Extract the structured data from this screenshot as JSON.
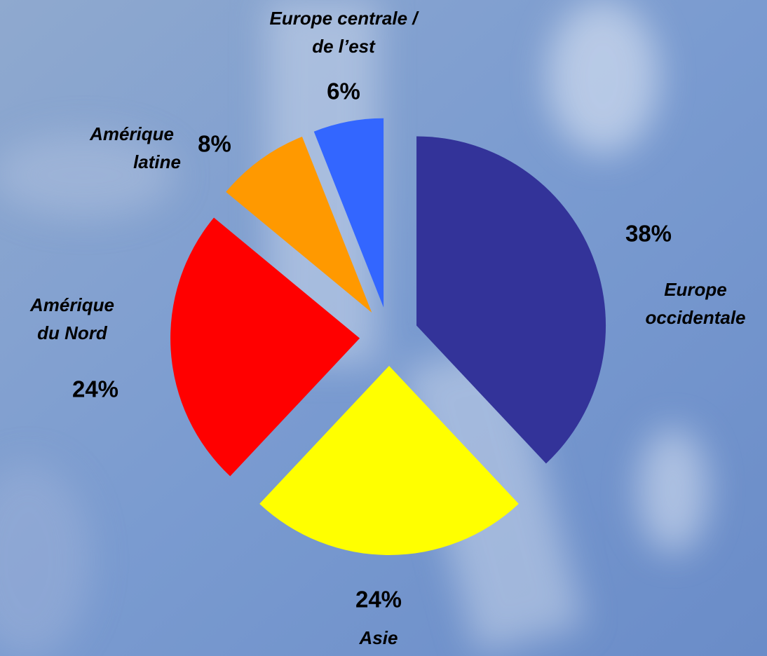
{
  "chart_data": {
    "type": "pie",
    "categories": [
      "Europe\noccidentale",
      "Asie",
      "Amérique\ndu Nord",
      "Amérique\nlatine",
      "Europe centrale /\nde l’est"
    ],
    "values": [
      38,
      24,
      24,
      8,
      6
    ],
    "value_labels": [
      "38%",
      "24%",
      "24%",
      "8%",
      "6%"
    ],
    "colors": [
      "#333399",
      "#ffff00",
      "#ff0000",
      "#ff9900",
      "#3366ff"
    ]
  }
}
